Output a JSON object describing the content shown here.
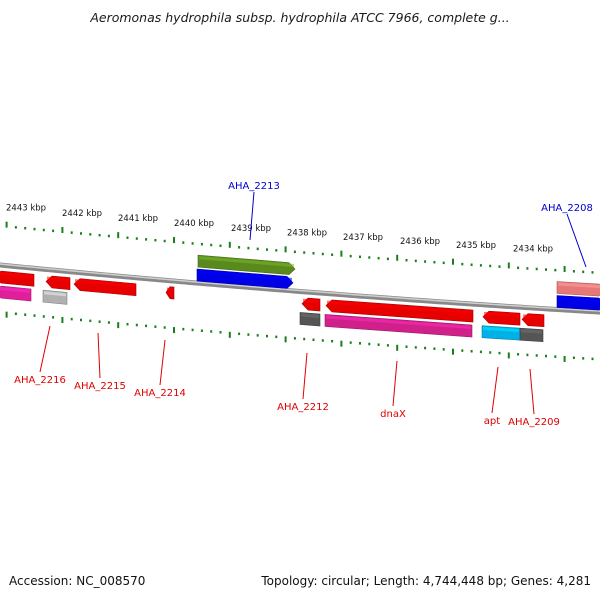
{
  "title": "Aeromonas hydrophila subsp. hydrophila ATCC 7966, complete g...",
  "accession": "Accession: NC_008570",
  "summary": "Topology: circular; Length: 4,744,448 bp; Genes: 4,281",
  "colors": {
    "backbone": "#888888",
    "tick": "#1a7f1a",
    "label_red": "#e00000",
    "label_blue": "#0000cc"
  },
  "scale": {
    "unit": "kbp",
    "labels": [
      "2443 kbp",
      "2442 kbp",
      "2441 kbp",
      "2440 kbp",
      "2439 kbp",
      "2438 kbp",
      "2437 kbp",
      "2436 kbp",
      "2435 kbp",
      "2434 kbp"
    ]
  },
  "genes": [
    {
      "name": "",
      "strand": "-",
      "track": "outer",
      "color": "#e60000"
    },
    {
      "name": "",
      "strand": "-",
      "track": "inner",
      "color": "#e0209a"
    },
    {
      "name": "AHA_2216",
      "strand": "-",
      "track": "outer",
      "color": "#e60000",
      "label_color": "red"
    },
    {
      "name": "",
      "strand": "-",
      "track": "inner",
      "color": "#b0b0b0"
    },
    {
      "name": "AHA_2215",
      "strand": "-",
      "track": "outer",
      "color": "#e60000",
      "label_color": "red"
    },
    {
      "name": "AHA_2214",
      "strand": "-",
      "track": "outer",
      "color": "#e60000",
      "label_color": "red"
    },
    {
      "name": "AHA_2213",
      "strand": "+",
      "track": "outer",
      "color": "#5a8a1e",
      "label_color": "blue"
    },
    {
      "name": "",
      "strand": "+",
      "track": "inner",
      "color": "#0000e6"
    },
    {
      "name": "AHA_2212",
      "strand": "-",
      "track": "outer",
      "color": "#e60000",
      "label_color": "red"
    },
    {
      "name": "",
      "strand": "-",
      "track": "inner",
      "color": "#555555"
    },
    {
      "name": "dnaX",
      "strand": "-",
      "track": "outer",
      "color": "#e60000",
      "label_color": "red"
    },
    {
      "name": "",
      "strand": "-",
      "track": "inner",
      "color": "#d0208a"
    },
    {
      "name": "apt",
      "strand": "-",
      "track": "outer",
      "color": "#e60000",
      "label_color": "red"
    },
    {
      "name": "",
      "strand": "-",
      "track": "inner",
      "color": "#00b0e6"
    },
    {
      "name": "AHA_2209",
      "strand": "-",
      "track": "outer",
      "color": "#e60000",
      "label_color": "red"
    },
    {
      "name": "",
      "strand": "-",
      "track": "inner",
      "color": "#555555"
    },
    {
      "name": "AHA_2208",
      "strand": "+",
      "track": "outer",
      "color": "#e67878",
      "label_color": "blue"
    },
    {
      "name": "",
      "strand": "+",
      "track": "inner",
      "color": "#0000e6"
    }
  ]
}
